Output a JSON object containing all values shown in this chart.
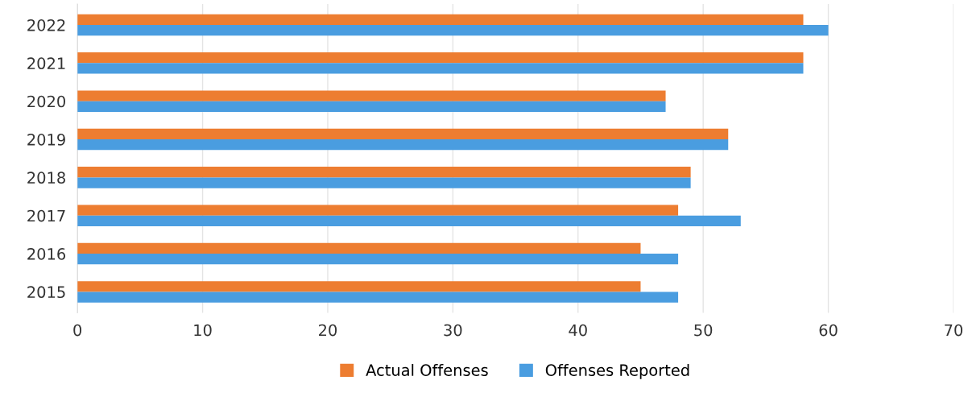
{
  "chart_data": {
    "type": "bar",
    "orientation": "horizontal",
    "categories": [
      "2022",
      "2021",
      "2020",
      "2019",
      "2018",
      "2017",
      "2016",
      "2015"
    ],
    "series": [
      {
        "name": "Actual Offenses",
        "color": "#ed7d31",
        "values": [
          58,
          58,
          47,
          52,
          49,
          48,
          45,
          45
        ]
      },
      {
        "name": "Offenses Reported",
        "color": "#4a9de0",
        "values": [
          60,
          58,
          47,
          52,
          49,
          53,
          48,
          48
        ]
      }
    ],
    "xlim": [
      0,
      70
    ],
    "xticks": [
      0,
      10,
      20,
      30,
      40,
      50,
      60,
      70
    ],
    "grid": "x",
    "legend": "bottom"
  }
}
